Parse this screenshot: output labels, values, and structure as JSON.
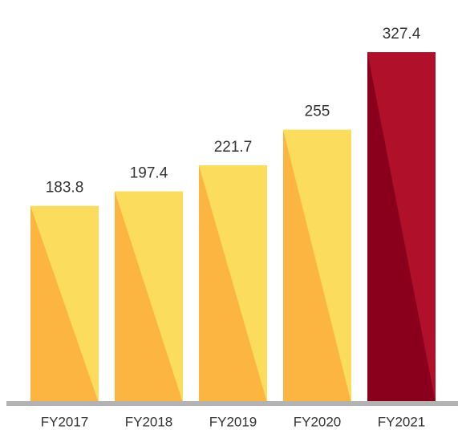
{
  "chart_data": {
    "type": "bar",
    "categories": [
      "FY2017",
      "FY2018",
      "FY2019",
      "FY2020",
      "FY2021"
    ],
    "values": [
      183.8,
      197.4,
      221.7,
      255,
      327.4
    ],
    "colors": [
      "#fcdc5c",
      "#fcdc5c",
      "#fcdc5c",
      "#fcdc5c",
      "#b01029"
    ],
    "shade_colors": [
      "#fbb540",
      "#fbb540",
      "#fbb540",
      "#fbb540",
      "#8a001c"
    ],
    "baseline_color": "#b3b3b3"
  }
}
